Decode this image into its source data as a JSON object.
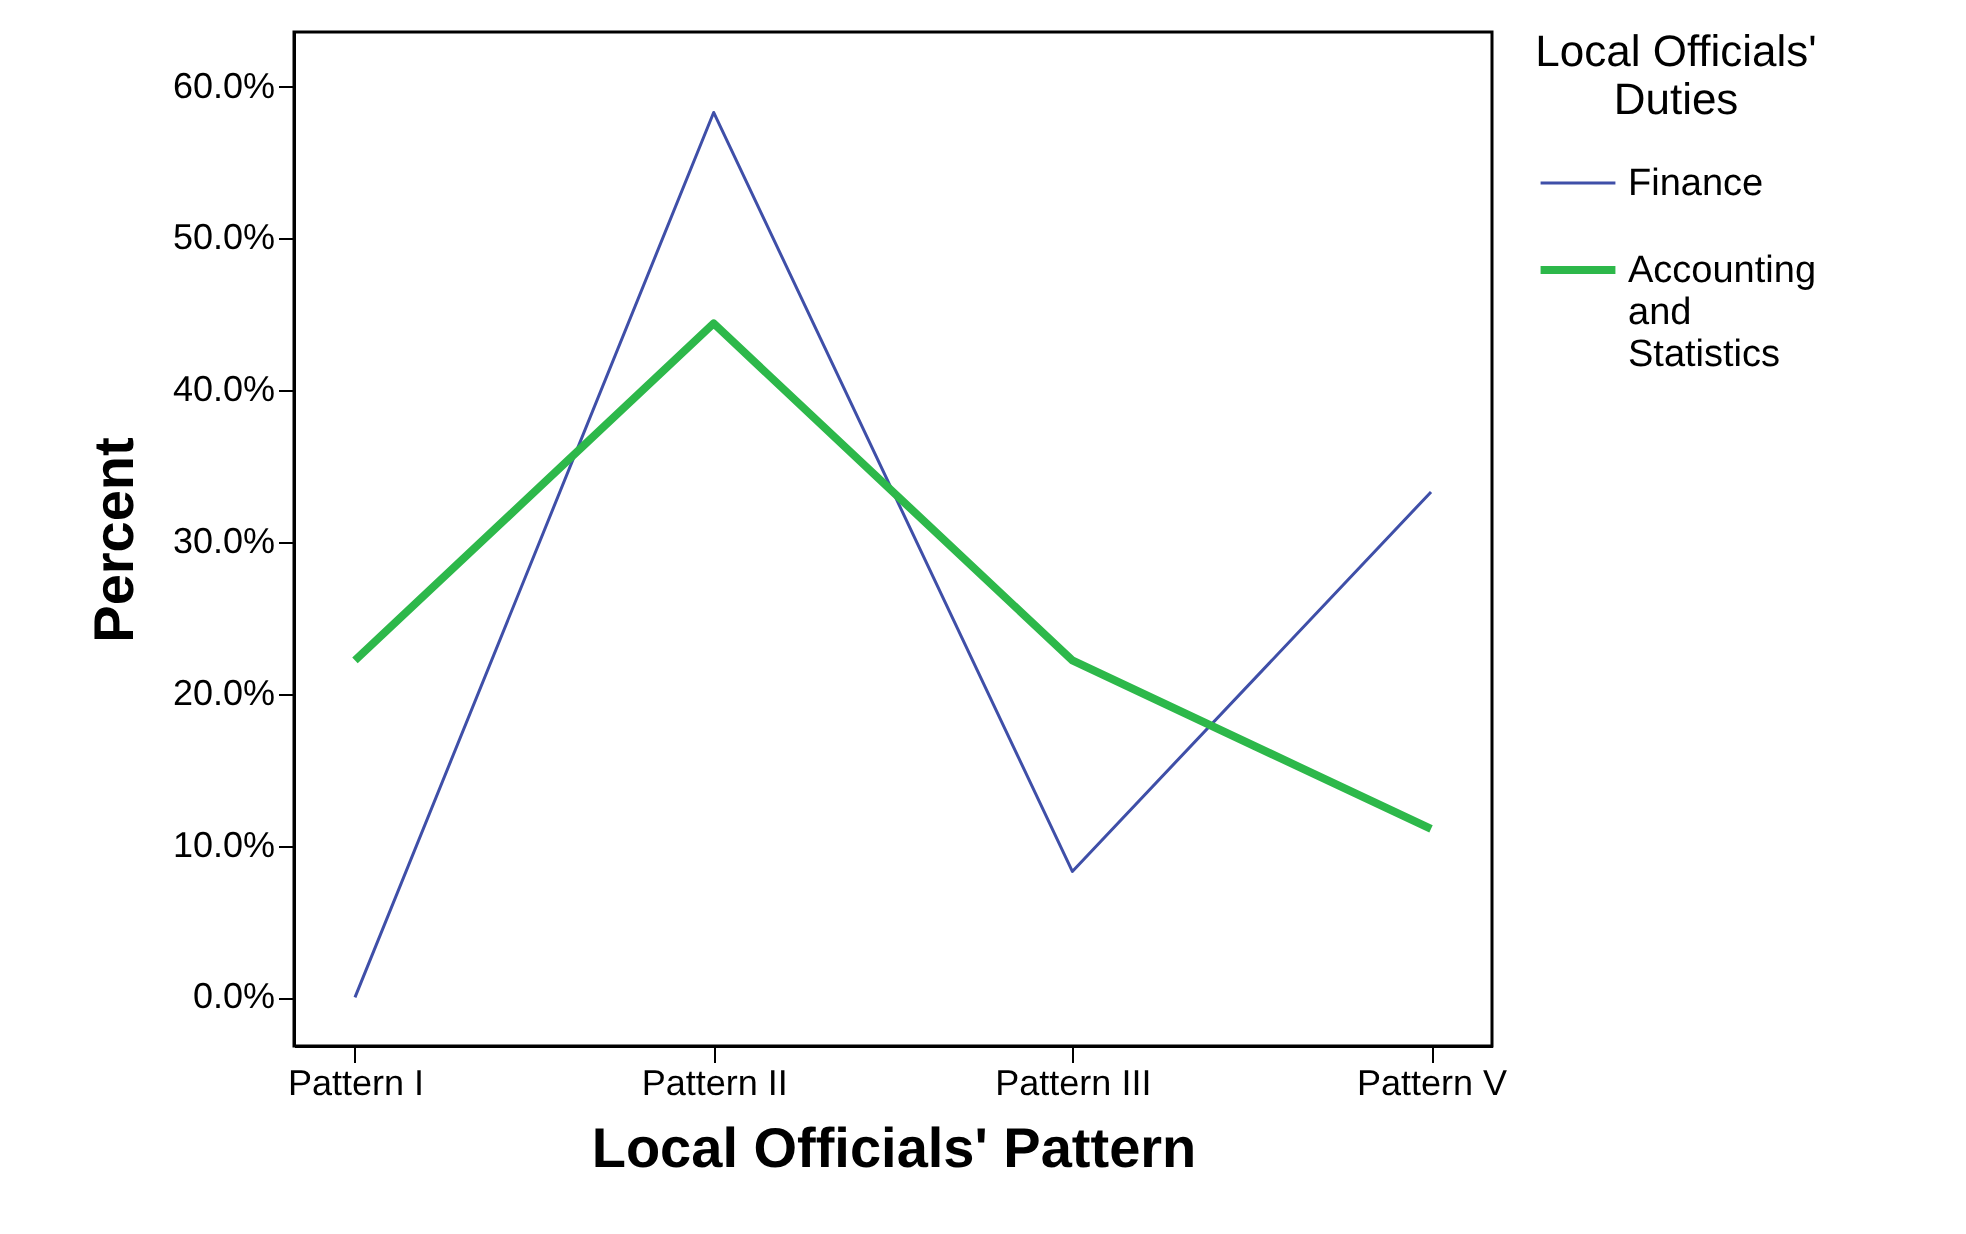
{
  "chart_data": {
    "type": "line",
    "xlabel": "Local Officials' Pattern",
    "ylabel": "Percent",
    "legend_title": "Local Officials' Duties",
    "categories": [
      "Pattern I",
      "Pattern II",
      "Pattern III",
      "Pattern V"
    ],
    "series": [
      {
        "name": "Finance",
        "color": "#3f4fa8",
        "values": [
          0,
          58.3,
          8.3,
          33.3
        ]
      },
      {
        "name": "Accounting and Statistics",
        "color": "#2db84a",
        "values": [
          22.2,
          44.4,
          22.2,
          11.1
        ]
      }
    ],
    "ylim": [
      -3.2,
      63.6
    ],
    "yticks": [
      {
        "value": 0,
        "label": "0.0%"
      },
      {
        "value": 10,
        "label": "10.0%"
      },
      {
        "value": 20,
        "label": "20.0%"
      },
      {
        "value": 30,
        "label": "30.0%"
      },
      {
        "value": 40,
        "label": "40.0%"
      },
      {
        "value": 50,
        "label": "50.0%"
      },
      {
        "value": 60,
        "label": "60.0%"
      }
    ],
    "grid": false,
    "legend": "top right",
    "marker": "none",
    "line_style": "solid"
  }
}
